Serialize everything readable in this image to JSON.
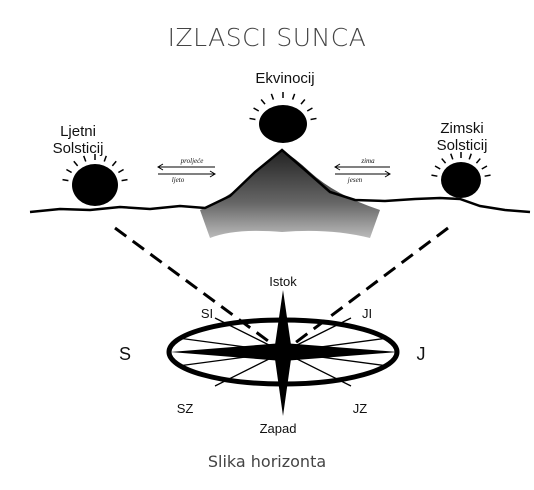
{
  "header": {
    "title": "IZLASCI SUNCA"
  },
  "diagram": {
    "equinox": "Ekvinocij",
    "summer_solstice": [
      "Ljetni",
      "Solsticij"
    ],
    "winter_solstice": [
      "Zimski",
      "Solsticij"
    ],
    "arrows": {
      "spring": "proljeće",
      "summer": "ljeto",
      "winter": "zima",
      "autumn": "jesen"
    },
    "compass": {
      "east": "Istok",
      "northeast": "SI",
      "southeast": "JI",
      "north": "S",
      "south": "J",
      "northwest": "SZ",
      "southwest": "JZ",
      "west": "Zapad"
    }
  },
  "caption": "Slika horizonta"
}
